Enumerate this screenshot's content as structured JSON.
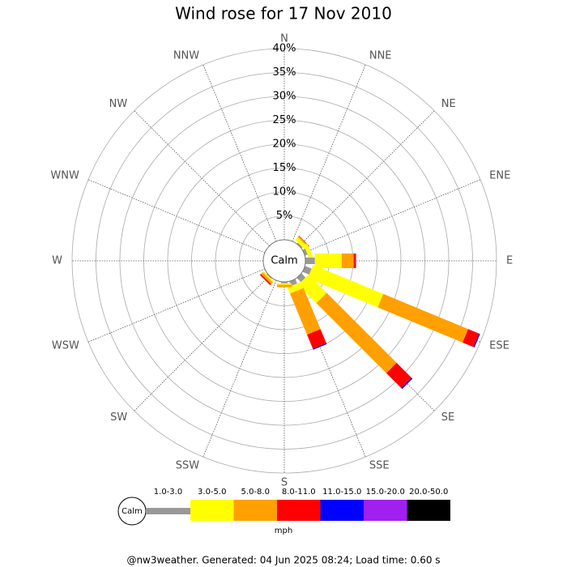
{
  "chart_data": {
    "type": "windrose",
    "title": "Wind rose for 17 Nov 2010",
    "directions": [
      "N",
      "NNE",
      "NE",
      "ENE",
      "E",
      "ESE",
      "SE",
      "SSE",
      "S",
      "SSW",
      "SW",
      "WSW",
      "W",
      "WNW",
      "NW",
      "NNW"
    ],
    "calm_label": "Calm",
    "ylim": [
      0,
      40
    ],
    "yticks": [
      {
        "value": 5,
        "label": "5%"
      },
      {
        "value": 10,
        "label": "10%"
      },
      {
        "value": 15,
        "label": "15%"
      },
      {
        "value": 20,
        "label": "20%"
      },
      {
        "value": 25,
        "label": "25%"
      },
      {
        "value": 30,
        "label": "30%"
      },
      {
        "value": 35,
        "label": "35%"
      },
      {
        "value": 40,
        "label": "40%"
      }
    ],
    "unit": "mph",
    "series": [
      {
        "name": "1.0-3.0",
        "color": "#999999",
        "values": [
          0,
          0,
          0.3,
          0.6,
          2.0,
          1.5,
          1.2,
          1.0,
          0.3,
          0,
          0.2,
          0,
          0,
          0,
          0,
          0
        ]
      },
      {
        "name": "3.0-5.0",
        "color": "#ffff00",
        "values": [
          0,
          0,
          0.8,
          0.8,
          5.6,
          15.9,
          5.4,
          1.4,
          0.3,
          0,
          0.3,
          0,
          0,
          0,
          0,
          0
        ]
      },
      {
        "name": "5.0-8.0",
        "color": "#ffa000",
        "values": [
          0,
          0,
          0.3,
          0,
          2.5,
          19.2,
          20.7,
          9.3,
          0.5,
          0,
          0.5,
          0,
          0,
          0,
          0,
          0
        ]
      },
      {
        "name": "8.0-11.0",
        "color": "#ff0000",
        "values": [
          0,
          0,
          0.1,
          0,
          0.5,
          2.5,
          4.4,
          3.2,
          0,
          0,
          0.3,
          0,
          0,
          0,
          0,
          0
        ]
      },
      {
        "name": "11.0-15.0",
        "color": "#0000ff",
        "values": [
          0,
          0,
          0,
          0,
          0,
          0.2,
          0.3,
          0.2,
          0,
          0,
          0,
          0,
          0,
          0,
          0,
          0
        ]
      },
      {
        "name": "15.0-20.0",
        "color": "#a020f0",
        "values": [
          0,
          0,
          0,
          0,
          0,
          0,
          0,
          0,
          0,
          0,
          0,
          0,
          0,
          0,
          0,
          0
        ]
      },
      {
        "name": "20.0-50.0",
        "color": "#000000",
        "values": [
          0,
          0,
          0,
          0,
          0,
          0,
          0,
          0,
          0,
          0,
          0,
          0,
          0,
          0,
          0,
          0
        ]
      }
    ],
    "footer": "@nw3weather. Generated: 04 Jun 2025 08:24; Load time: 0.60 s"
  }
}
